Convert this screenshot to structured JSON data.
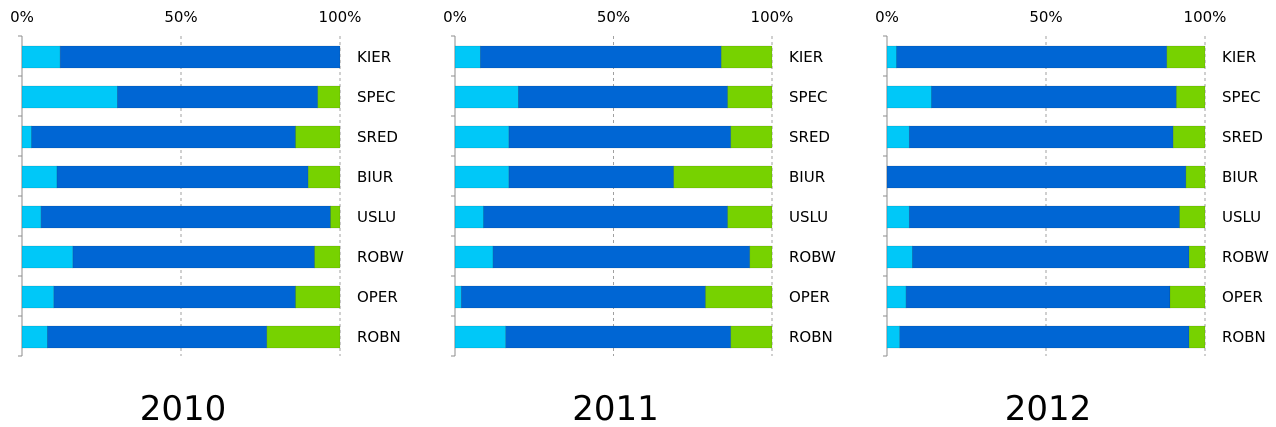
{
  "chart_data": [
    {
      "type": "bar",
      "orientation": "horizontal",
      "stacked": "percent",
      "title": "2010",
      "xlim": [
        0,
        100
      ],
      "xticks": [
        "0%",
        "50%",
        "100%"
      ],
      "grid": true,
      "categories": [
        "KIER",
        "SPEC",
        "SRED",
        "BIUR",
        "USLU",
        "ROBW",
        "OPER",
        "ROBN"
      ],
      "series": [
        {
          "color": "#00c8f8",
          "values": [
            12,
            30,
            3,
            11,
            6,
            16,
            10,
            8
          ]
        },
        {
          "color": "#0066d4",
          "values": [
            88,
            63,
            83,
            79,
            91,
            76,
            76,
            69
          ]
        },
        {
          "color": "#77d200",
          "values": [
            0,
            7,
            14,
            10,
            3,
            8,
            14,
            23
          ]
        }
      ]
    },
    {
      "type": "bar",
      "orientation": "horizontal",
      "stacked": "percent",
      "title": "2011",
      "xlim": [
        0,
        100
      ],
      "xticks": [
        "0%",
        "50%",
        "100%"
      ],
      "grid": true,
      "categories": [
        "KIER",
        "SPEC",
        "SRED",
        "BIUR",
        "USLU",
        "ROBW",
        "OPER",
        "ROBN"
      ],
      "series": [
        {
          "color": "#00c8f8",
          "values": [
            8,
            20,
            17,
            17,
            9,
            12,
            2,
            16
          ]
        },
        {
          "color": "#0066d4",
          "values": [
            76,
            66,
            70,
            52,
            77,
            81,
            77,
            71
          ]
        },
        {
          "color": "#77d200",
          "values": [
            16,
            14,
            13,
            31,
            14,
            7,
            21,
            13
          ]
        }
      ]
    },
    {
      "type": "bar",
      "orientation": "horizontal",
      "stacked": "percent",
      "title": "2012",
      "xlim": [
        0,
        100
      ],
      "xticks": [
        "0%",
        "50%",
        "100%"
      ],
      "grid": true,
      "categories": [
        "KIER",
        "SPEC",
        "SRED",
        "BIUR",
        "USLU",
        "ROBW",
        "OPER",
        "ROBN"
      ],
      "series": [
        {
          "color": "#00c8f8",
          "values": [
            3,
            14,
            7,
            0,
            7,
            8,
            6,
            4
          ]
        },
        {
          "color": "#0066d4",
          "values": [
            85,
            77,
            83,
            94,
            85,
            87,
            83,
            91
          ]
        },
        {
          "color": "#77d200",
          "values": [
            12,
            9,
            10,
            6,
            8,
            5,
            11,
            5
          ]
        }
      ]
    }
  ]
}
